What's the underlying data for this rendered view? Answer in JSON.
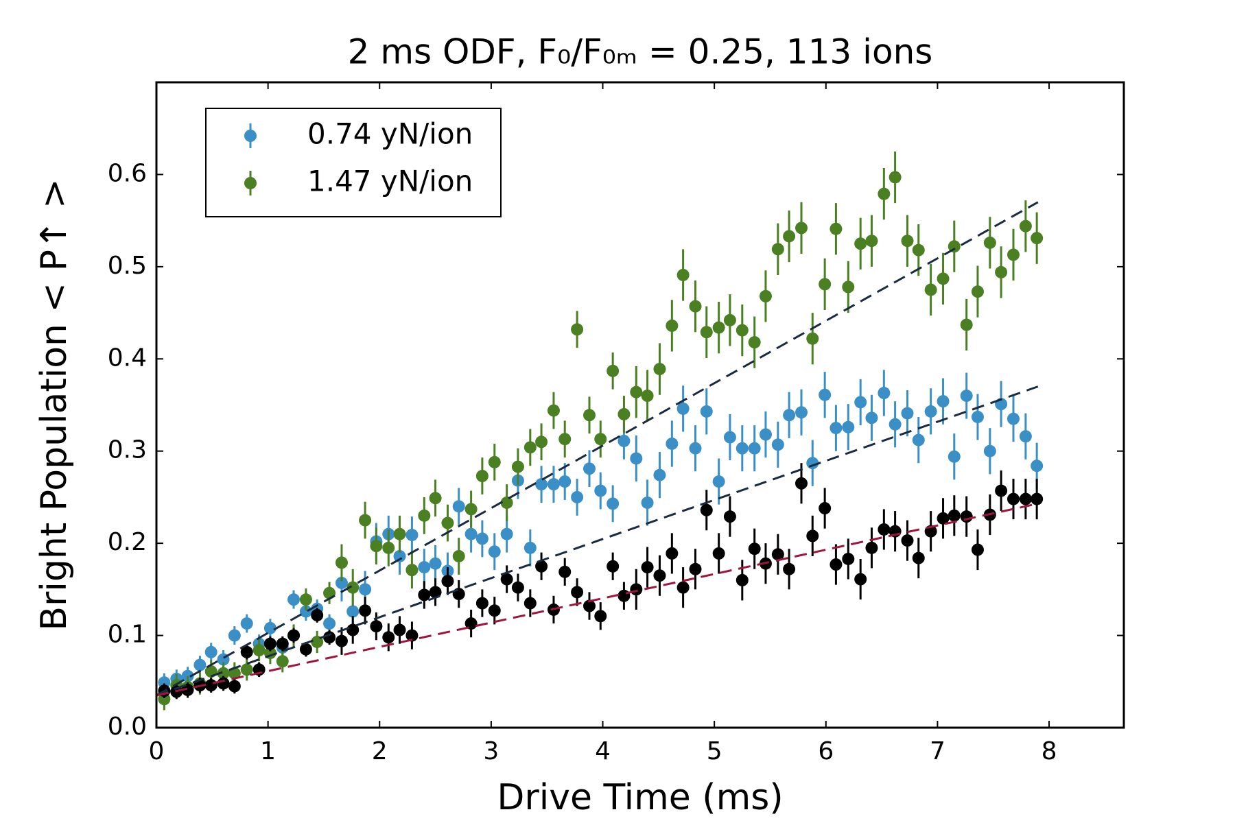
{
  "chart_data": {
    "type": "errorbar",
    "title": "2 ms ODF, F₀/F₀ₘ = 0.25, 113 ions",
    "x_label": "Drive Time (ms)",
    "y_label": "Bright Population < P↑ >",
    "xlim": [
      0,
      8.67
    ],
    "ylim": [
      0,
      0.7
    ],
    "xticks": [
      0,
      1,
      2,
      3,
      4,
      5,
      6,
      7,
      8
    ],
    "yticks": [
      {
        "value": 0,
        "label": "0.0"
      },
      0.1,
      0.2,
      0.3,
      0.4,
      0.5,
      0.6
    ],
    "legend": "upper left",
    "x": [
      0.07,
      0.18,
      0.28,
      0.39,
      0.49,
      0.6,
      0.7,
      0.81,
      0.92,
      1.02,
      1.13,
      1.23,
      1.34,
      1.44,
      1.55,
      1.66,
      1.76,
      1.87,
      1.97,
      2.08,
      2.18,
      2.29,
      2.4,
      2.5,
      2.61,
      2.71,
      2.82,
      2.92,
      3.03,
      3.14,
      3.24,
      3.35,
      3.45,
      3.56,
      3.66,
      3.77,
      3.88,
      3.98,
      4.09,
      4.19,
      4.3,
      4.4,
      4.51,
      4.62,
      4.72,
      4.83,
      4.93,
      5.04,
      5.14,
      5.25,
      5.36,
      5.46,
      5.57,
      5.67,
      5.78,
      5.88,
      5.99,
      6.09,
      6.2,
      6.31,
      6.41,
      6.52,
      6.62,
      6.73,
      6.83,
      6.94,
      7.05,
      7.15,
      7.26,
      7.36,
      7.47,
      7.57,
      7.68,
      7.79,
      7.89
    ],
    "series": [
      {
        "name": "0.74 yN/ion",
        "color": "#3a8fc7",
        "values": [
          0.049,
          0.053,
          0.056,
          0.068,
          0.082,
          0.074,
          0.1,
          0.113,
          0.091,
          0.108,
          0.087,
          0.139,
          0.126,
          0.129,
          0.113,
          0.157,
          0.126,
          0.15,
          0.202,
          0.21,
          0.186,
          0.209,
          0.174,
          0.178,
          0.17,
          0.24,
          0.21,
          0.205,
          0.191,
          0.21,
          0.268,
          0.195,
          0.264,
          0.264,
          0.267,
          0.25,
          0.281,
          0.257,
          0.243,
          0.311,
          0.292,
          0.244,
          0.274,
          0.308,
          0.346,
          0.303,
          0.343,
          0.267,
          0.315,
          0.303,
          0.303,
          0.318,
          0.307,
          0.339,
          0.342,
          0.287,
          0.361,
          0.325,
          0.326,
          0.353,
          0.336,
          0.363,
          0.329,
          0.341,
          0.312,
          0.343,
          0.354,
          0.294,
          0.36,
          0.337,
          0.3,
          0.351,
          0.335,
          0.316,
          0.284
        ],
        "errors": [
          0.01,
          0.01,
          0.01,
          0.01,
          0.01,
          0.01,
          0.01,
          0.01,
          0.01,
          0.01,
          0.01,
          0.01,
          0.01,
          0.01,
          0.01,
          0.02,
          0.02,
          0.02,
          0.02,
          0.02,
          0.02,
          0.02,
          0.02,
          0.02,
          0.02,
          0.02,
          0.02,
          0.02,
          0.02,
          0.02,
          0.02,
          0.02,
          0.02,
          0.02,
          0.02,
          0.02,
          0.02,
          0.02,
          0.02,
          0.02,
          0.025,
          0.025,
          0.025,
          0.025,
          0.025,
          0.025,
          0.025,
          0.025,
          0.025,
          0.025,
          0.025,
          0.025,
          0.025,
          0.025,
          0.025,
          0.025,
          0.025,
          0.025,
          0.025,
          0.025,
          0.025,
          0.025,
          0.025,
          0.025,
          0.025,
          0.025,
          0.025,
          0.025,
          0.025,
          0.025,
          0.025,
          0.025,
          0.025,
          0.025,
          0.025
        ]
      },
      {
        "name": "1.47 yN/ion",
        "color": "#4a7f22",
        "values": [
          0.031,
          0.046,
          0.044,
          0.048,
          0.061,
          0.059,
          0.059,
          0.063,
          0.084,
          0.081,
          0.072,
          0.1,
          0.139,
          0.093,
          0.146,
          0.179,
          0.152,
          0.225,
          0.197,
          0.195,
          0.21,
          0.171,
          0.23,
          0.249,
          0.222,
          0.186,
          0.237,
          0.273,
          0.288,
          0.244,
          0.283,
          0.304,
          0.31,
          0.344,
          0.313,
          0.432,
          0.339,
          0.313,
          0.387,
          0.34,
          0.364,
          0.36,
          0.389,
          0.436,
          0.491,
          0.457,
          0.429,
          0.434,
          0.442,
          0.431,
          0.418,
          0.468,
          0.519,
          0.533,
          0.542,
          0.422,
          0.481,
          0.541,
          0.478,
          0.525,
          0.528,
          0.579,
          0.597,
          0.528,
          0.518,
          0.475,
          0.487,
          0.522,
          0.437,
          0.473,
          0.526,
          0.494,
          0.513,
          0.544,
          0.531
        ],
        "errors": [
          0.012,
          0.012,
          0.012,
          0.012,
          0.012,
          0.012,
          0.012,
          0.012,
          0.012,
          0.012,
          0.012,
          0.012,
          0.012,
          0.012,
          0.012,
          0.02,
          0.02,
          0.02,
          0.02,
          0.02,
          0.02,
          0.02,
          0.02,
          0.02,
          0.02,
          0.02,
          0.02,
          0.02,
          0.02,
          0.02,
          0.02,
          0.02,
          0.02,
          0.02,
          0.02,
          0.02,
          0.02,
          0.02,
          0.02,
          0.02,
          0.028,
          0.028,
          0.028,
          0.028,
          0.028,
          0.028,
          0.028,
          0.028,
          0.028,
          0.028,
          0.028,
          0.028,
          0.028,
          0.028,
          0.028,
          0.028,
          0.028,
          0.028,
          0.028,
          0.028,
          0.028,
          0.028,
          0.028,
          0.028,
          0.028,
          0.028,
          0.028,
          0.028,
          0.028,
          0.028,
          0.028,
          0.028,
          0.028,
          0.028,
          0.028
        ]
      },
      {
        "color": "#000000",
        "values": [
          0.04,
          0.039,
          0.041,
          0.046,
          0.046,
          0.048,
          0.045,
          0.082,
          0.063,
          0.091,
          0.091,
          0.1,
          0.085,
          0.122,
          0.098,
          0.094,
          0.106,
          0.127,
          0.11,
          0.098,
          0.106,
          0.1,
          0.144,
          0.147,
          0.159,
          0.145,
          0.113,
          0.135,
          0.127,
          0.161,
          0.152,
          0.135,
          0.175,
          0.128,
          0.169,
          0.147,
          0.132,
          0.121,
          0.175,
          0.143,
          0.15,
          0.174,
          0.165,
          0.189,
          0.152,
          0.172,
          0.236,
          0.189,
          0.229,
          0.16,
          0.194,
          0.178,
          0.188,
          0.172,
          0.265,
          0.208,
          0.238,
          0.177,
          0.183,
          0.161,
          0.195,
          0.215,
          0.213,
          0.203,
          0.184,
          0.213,
          0.227,
          0.23,
          0.229,
          0.193,
          0.231,
          0.257,
          0.248,
          0.248,
          0.248
        ],
        "errors": [
          0.008,
          0.008,
          0.008,
          0.008,
          0.008,
          0.008,
          0.008,
          0.008,
          0.008,
          0.008,
          0.008,
          0.008,
          0.008,
          0.008,
          0.008,
          0.015,
          0.015,
          0.015,
          0.015,
          0.015,
          0.015,
          0.015,
          0.015,
          0.015,
          0.015,
          0.015,
          0.015,
          0.015,
          0.015,
          0.015,
          0.015,
          0.015,
          0.015,
          0.015,
          0.015,
          0.015,
          0.015,
          0.015,
          0.015,
          0.015,
          0.022,
          0.022,
          0.022,
          0.022,
          0.022,
          0.022,
          0.022,
          0.022,
          0.022,
          0.022,
          0.022,
          0.022,
          0.022,
          0.022,
          0.022,
          0.022,
          0.022,
          0.022,
          0.022,
          0.022,
          0.022,
          0.022,
          0.022,
          0.022,
          0.022,
          0.022,
          0.022,
          0.022,
          0.022,
          0.022,
          0.022,
          0.022,
          0.022,
          0.022,
          0.022
        ]
      }
    ],
    "fit_lines": [
      {
        "color": "#1a2a40",
        "x": [
          0,
          7.9
        ],
        "values": [
          0.035,
          0.57
        ]
      },
      {
        "color": "#1a2a40",
        "x": [
          0,
          7.9
        ],
        "values": [
          0.035,
          0.37
        ]
      },
      {
        "color": "#a0153e",
        "x": [
          0,
          7.9
        ],
        "values": [
          0.035,
          0.243
        ]
      }
    ]
  }
}
